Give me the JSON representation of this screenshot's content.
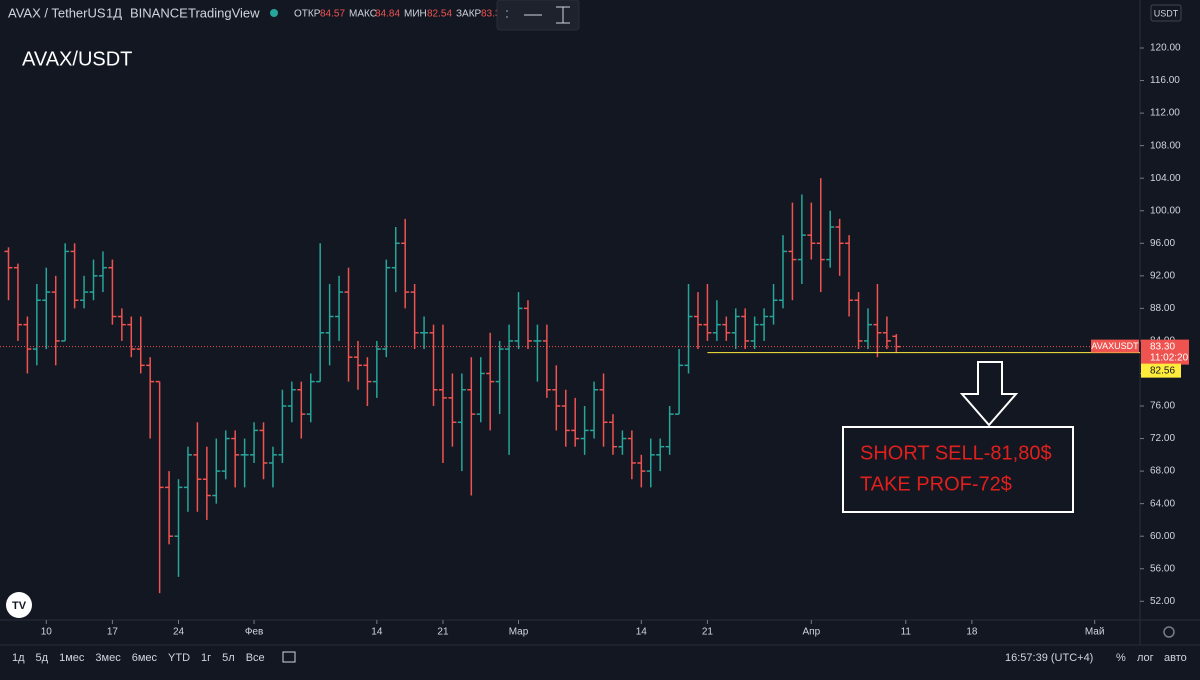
{
  "header": {
    "symbol": "AVAX / TetherUS",
    "interval": "1Д",
    "exchange": "BINANCE",
    "source": "TradingView",
    "open_label": "ОТКР",
    "open": "84.57",
    "high_label": "МАКС",
    "high": "84.84",
    "low_label": "МИН",
    "low": "82.54",
    "close_label": "ЗАКР",
    "close": "83.3",
    "currency": "USDT"
  },
  "toolbar": {
    "ranges": [
      "1д",
      "5д",
      "1мес",
      "3мес",
      "6мес",
      "YTD",
      "1г",
      "5л",
      "Все"
    ],
    "time": "16:57:39 (UTC+4)",
    "percent": "%",
    "log": "лог",
    "auto": "авто"
  },
  "annotations": [
    "SHORT SELL-81,80$",
    "TAKE PROF-72$"
  ],
  "chart_data": {
    "type": "ohlc",
    "title": "AVAX/USDT",
    "up_color": "#26a69a",
    "down_color": "#ef5350",
    "x": [
      -4,
      -3,
      -2,
      -1,
      0,
      1,
      2,
      3,
      4,
      5,
      6,
      7,
      8,
      9,
      10,
      11,
      12,
      13,
      14,
      15,
      16,
      17,
      18,
      19,
      20,
      21,
      22,
      23,
      24,
      25,
      26,
      27,
      28,
      29,
      30,
      31,
      32,
      33,
      34,
      35,
      36,
      37,
      38,
      39,
      40,
      41,
      42,
      43,
      44,
      45,
      46,
      47,
      48,
      49,
      50,
      51,
      52,
      53,
      54,
      55,
      56,
      57,
      58,
      59,
      60,
      61,
      62,
      63,
      64,
      65,
      66,
      67,
      68,
      69,
      70,
      71,
      72,
      73,
      74,
      75,
      76,
      77,
      78,
      79,
      80,
      81,
      82,
      83,
      84,
      85,
      86,
      87,
      88,
      89,
      90
    ],
    "open": [
      95,
      93,
      86,
      83,
      89,
      90,
      84,
      95,
      89,
      90,
      92,
      93,
      87,
      86,
      83,
      81,
      79,
      66,
      60,
      66,
      70,
      67,
      65,
      68,
      72,
      70,
      70,
      73,
      69,
      70,
      76,
      78,
      75,
      79,
      85,
      87,
      90,
      82,
      81,
      79,
      83,
      93,
      96,
      90,
      85,
      85,
      78,
      77,
      74,
      78,
      75,
      80,
      79,
      83,
      84,
      88,
      84,
      84,
      78,
      76,
      73,
      72,
      73,
      78,
      74,
      71,
      72,
      69,
      68,
      70,
      71,
      75,
      81,
      87,
      86,
      85,
      86,
      85,
      87,
      84,
      86,
      87,
      89,
      95,
      94,
      97,
      96,
      94,
      98,
      96,
      89,
      84,
      86,
      85,
      84.57
    ],
    "high": [
      95.5,
      93.5,
      87,
      91,
      93,
      92,
      96,
      96,
      92,
      94,
      95,
      94,
      88,
      87,
      87,
      82,
      79,
      68,
      67,
      71,
      74,
      71,
      72,
      73,
      73,
      72,
      74,
      74,
      71,
      78,
      79,
      79,
      80,
      96,
      91,
      92,
      93,
      84,
      82,
      84,
      94,
      98,
      99,
      91,
      87,
      86,
      86,
      80,
      80,
      82,
      82,
      85,
      84,
      86,
      90,
      89,
      86,
      86,
      81,
      78,
      77,
      76,
      79,
      80,
      75,
      73,
      73,
      70,
      72,
      72,
      76,
      83,
      91,
      90,
      91,
      89,
      87,
      88,
      88,
      87,
      88,
      91,
      97,
      101,
      102,
      101,
      104,
      100,
      99,
      97,
      90,
      88,
      91,
      87,
      84.84
    ],
    "low": [
      89,
      84,
      80,
      81,
      83,
      81,
      84,
      88,
      88,
      89,
      90,
      86,
      84,
      82,
      80,
      72,
      53,
      59,
      55,
      63,
      63,
      62,
      64,
      67,
      66,
      66,
      69,
      67,
      66,
      69,
      74,
      72,
      74,
      79,
      81,
      84,
      79,
      78,
      76,
      77,
      82,
      90,
      88,
      83,
      83,
      76,
      69,
      71,
      68,
      65,
      74,
      73,
      75,
      70,
      83,
      83,
      79,
      77,
      73,
      71,
      71,
      70,
      72,
      71,
      70,
      70,
      67,
      66,
      66,
      68,
      70,
      75,
      80,
      83,
      84,
      84,
      84,
      83,
      83,
      83,
      84,
      86,
      88,
      89,
      91,
      94,
      90,
      93,
      92,
      87,
      83,
      83,
      82,
      83,
      82.54
    ],
    "close": [
      93,
      86,
      83,
      89,
      90,
      84,
      95,
      89,
      90,
      92,
      93,
      87,
      86,
      83,
      81,
      79,
      66,
      60,
      66,
      70,
      67,
      65,
      68,
      72,
      70,
      70,
      73,
      69,
      70,
      76,
      78,
      75,
      79,
      85,
      87,
      90,
      82,
      81,
      79,
      83,
      93,
      96,
      90,
      85,
      85,
      78,
      77,
      74,
      78,
      75,
      80,
      79,
      83,
      84,
      88,
      84,
      84,
      78,
      76,
      73,
      72,
      73,
      78,
      74,
      71,
      72,
      69,
      68,
      70,
      71,
      75,
      81,
      87,
      86,
      85,
      86,
      85,
      87,
      84,
      86,
      87,
      89,
      95,
      94,
      97,
      96,
      94,
      98,
      96,
      89,
      84,
      86,
      85,
      84,
      83.3
    ],
    "xlim": [
      -4.9,
      115.8
    ],
    "ylim": [
      49.7,
      125.9
    ],
    "xticks": [
      {
        "value": 0,
        "label": "10"
      },
      {
        "value": 7,
        "label": "17"
      },
      {
        "value": 14,
        "label": "24"
      },
      {
        "value": 22,
        "label": "Фев"
      },
      {
        "value": 35,
        "label": "14"
      },
      {
        "value": 42,
        "label": "21"
      },
      {
        "value": 50,
        "label": "Мар"
      },
      {
        "value": 63,
        "label": "14"
      },
      {
        "value": 70,
        "label": "21"
      },
      {
        "value": 81,
        "label": "Апр"
      },
      {
        "value": 91,
        "label": "11"
      },
      {
        "value": 98,
        "label": "18"
      },
      {
        "value": 111,
        "label": "Май"
      }
    ],
    "yticks": [
      {
        "value": 52,
        "label": "52.00"
      },
      {
        "value": 56,
        "label": "56.00"
      },
      {
        "value": 60,
        "label": "60.00"
      },
      {
        "value": 64,
        "label": "64.00"
      },
      {
        "value": 68,
        "label": "68.00"
      },
      {
        "value": 72,
        "label": "72.00"
      },
      {
        "value": 76,
        "label": "76.00"
      },
      {
        "value": 80,
        "label": "80.00"
      },
      {
        "value": 84,
        "label": "84.00"
      },
      {
        "value": 88,
        "label": "88.00"
      },
      {
        "value": 92,
        "label": "92.00"
      },
      {
        "value": 96,
        "label": "96.00"
      },
      {
        "value": 100,
        "label": "100.00"
      },
      {
        "value": 104,
        "label": "104.00"
      },
      {
        "value": 108,
        "label": "108.00"
      },
      {
        "value": 112,
        "label": "112.00"
      },
      {
        "value": 116,
        "label": "116.00"
      },
      {
        "value": 120,
        "label": "120.00"
      }
    ],
    "price_line": {
      "name": "AVAXUSDT",
      "value": 83.3,
      "label": "83.30",
      "countdown": "11:02:20",
      "color": "#ef5350"
    },
    "level_line": {
      "value": 82.56,
      "label": "82.56",
      "from_x": 70,
      "color": "#ffeb3b"
    }
  }
}
